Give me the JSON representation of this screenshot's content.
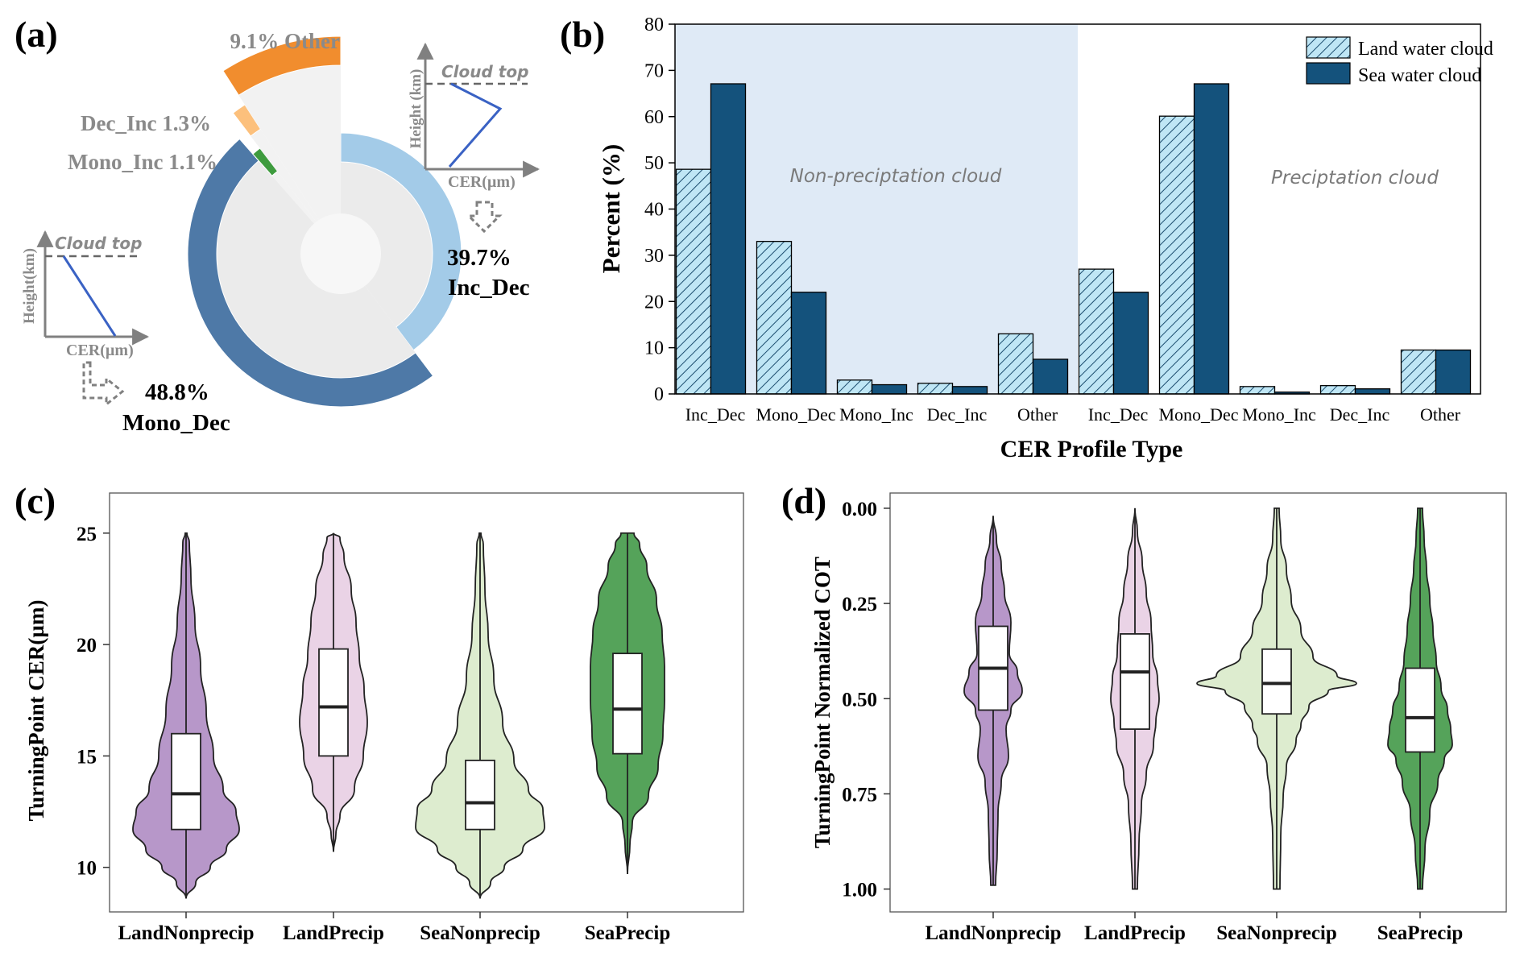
{
  "colors": {
    "land": "#bfe6f5",
    "land_hatch": "#1b4c6e",
    "sea": "#14527c",
    "nonprecip_bg": "#dfeaf6",
    "pie_inc_dec": "#a3cbe8",
    "pie_mono_dec": "#4e79a7",
    "pie_other": "#f18d2e",
    "pie_dec_inc": "#fcc07c",
    "pie_mono_inc": "#3e9b3e",
    "violin_landnonprecip": "#b797c9",
    "violin_landprecip": "#ead3e6",
    "violin_seanonprecip": "#ddeccf",
    "violin_seaprecip": "#55a35a"
  },
  "panel_a": {
    "letter": "(a)",
    "segments": [
      {
        "key": "inc_dec",
        "pct": 39.7,
        "label": "39.7%",
        "name": "Inc_Dec"
      },
      {
        "key": "mono_dec",
        "pct": 48.8,
        "label": "48.8%",
        "name": "Mono_Dec"
      },
      {
        "key": "mono_inc",
        "pct": 1.1,
        "label": "Mono_Inc 1.1%"
      },
      {
        "key": "dec_inc",
        "pct": 1.3,
        "label": "Dec_Inc 1.3%"
      },
      {
        "key": "other",
        "pct": 9.1,
        "label": "9.1% Other"
      }
    ],
    "inset_dec": {
      "cloud_top": "Cloud top",
      "ylabel": "Height (km)",
      "xlabel": "CER(µm)"
    },
    "inset_mono": {
      "cloud_top": "Cloud top",
      "ylabel": "Height(km)",
      "xlabel": "CER(µm)"
    }
  },
  "panel_b": {
    "letter": "(b)",
    "region_labels": [
      "Non-preciptation cloud",
      "Preciptation cloud"
    ]
  },
  "panel_c": {
    "letter": "(c)"
  },
  "panel_d": {
    "letter": "(d)"
  },
  "chart_data": [
    {
      "type": "bar",
      "xlabel": "CER Profile Type",
      "ylabel": "Percent (%)",
      "ylim": [
        0,
        80
      ],
      "yticks": [
        0,
        10,
        20,
        30,
        40,
        50,
        60,
        70,
        80
      ],
      "categories": [
        "Inc_Dec",
        "Mono_Dec",
        "Mono_Inc",
        "Dec_Inc",
        "Other",
        "Inc_Dec",
        "Mono_Dec",
        "Mono_Inc",
        "Dec_Inc",
        "Other"
      ],
      "groups": [
        "Non-preciptation cloud",
        "Preciptation cloud"
      ],
      "series": [
        {
          "name": "Land water cloud",
          "values": [
            48.6,
            33.0,
            3.0,
            2.3,
            13.0,
            27.0,
            60.1,
            1.6,
            1.8,
            9.5
          ]
        },
        {
          "name": "Sea water cloud",
          "values": [
            67.1,
            22.0,
            2.0,
            1.6,
            7.5,
            22.0,
            67.1,
            0.4,
            1.1,
            9.5
          ]
        }
      ],
      "legend_position": "top-right"
    },
    {
      "type": "violin",
      "ylabel": "TurningPoint CER(µm)",
      "ylim": [
        8.0,
        26.8
      ],
      "yticks": [
        10,
        15,
        20,
        25
      ],
      "categories": [
        "LandNonprecip",
        "LandPrecip",
        "SeaNonprecip",
        "SeaPrecip"
      ],
      "box": [
        {
          "min": 8.6,
          "q1": 11.7,
          "median": 13.3,
          "q3": 16.0,
          "max": 25.0
        },
        {
          "min": 10.7,
          "q1": 15.0,
          "median": 17.2,
          "q3": 19.8,
          "max": 25.0
        },
        {
          "min": 8.6,
          "q1": 11.7,
          "median": 12.9,
          "q3": 14.8,
          "max": 25.0
        },
        {
          "min": 9.7,
          "q1": 15.1,
          "median": 17.1,
          "q3": 19.6,
          "max": 25.0
        }
      ]
    },
    {
      "type": "violin",
      "ylabel": "TurningPoint Normalized COT",
      "ylim": [
        -0.04,
        1.06
      ],
      "yticks": [
        0.0,
        0.25,
        0.5,
        0.75,
        1.0
      ],
      "ytick_labels": [
        "0.00",
        "0.25",
        "0.50",
        "0.75",
        "1.00"
      ],
      "inverted": true,
      "categories": [
        "LandNonprecip",
        "LandPrecip",
        "SeaNonprecip",
        "SeaPrecip"
      ],
      "box": [
        {
          "min": 0.02,
          "q1": 0.31,
          "median": 0.42,
          "q3": 0.53,
          "max": 0.99
        },
        {
          "min": 0.0,
          "q1": 0.33,
          "median": 0.43,
          "q3": 0.58,
          "max": 1.0
        },
        {
          "min": 0.0,
          "q1": 0.37,
          "median": 0.46,
          "q3": 0.54,
          "max": 1.0
        },
        {
          "min": 0.0,
          "q1": 0.42,
          "median": 0.55,
          "q3": 0.64,
          "max": 1.0
        }
      ]
    }
  ]
}
